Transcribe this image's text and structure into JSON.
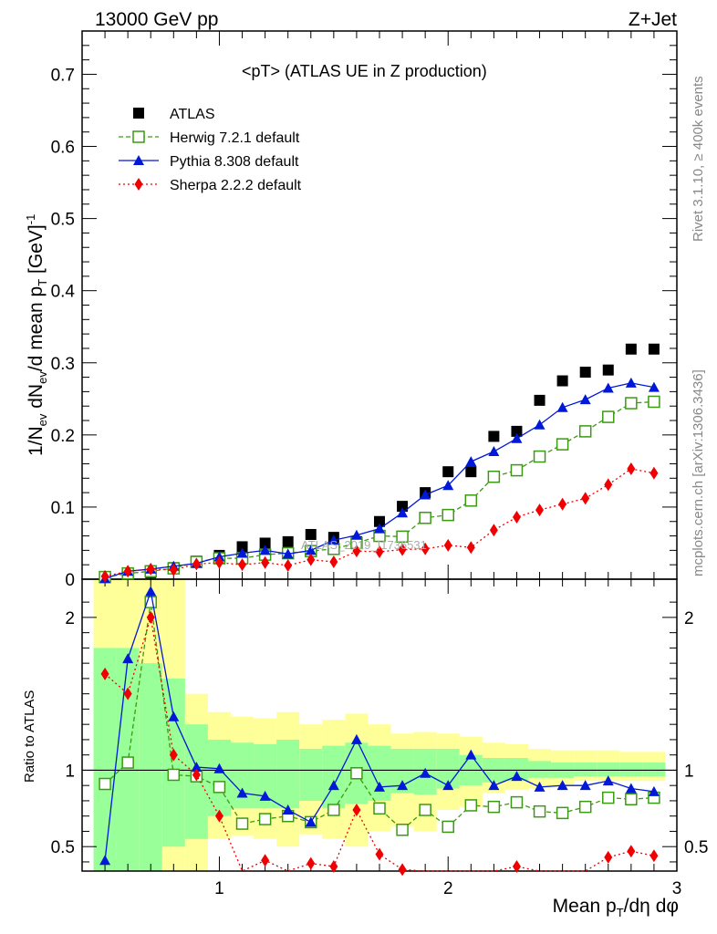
{
  "header": {
    "energy_label": "13000 GeV pp",
    "process_label": "Z+Jet"
  },
  "side_labels": {
    "rivet": "Rivet 3.1.10, ≥ 400k events",
    "mcplots": "mcplots.cern.ch [arXiv:1306.3436]"
  },
  "watermark": "ATLAS_2019_I1736531",
  "colors": {
    "atlas": "#000000",
    "herwig": "#3c9a12",
    "pythia": "#0018d8",
    "sherpa": "#f00000",
    "band_inner": "#99ff99",
    "band_outer": "#ffff99"
  },
  "chart_data": [
    {
      "type": "scatter",
      "title": "<pT> (ATLAS UE in Z production)",
      "ylabel": "1/N_ev dN_ev/d mean p_T [GeV]^-1",
      "ylim": [
        0,
        0.76
      ],
      "xlim": [
        0.4,
        3.0
      ],
      "yticks": [
        0,
        0.1,
        0.2,
        0.3,
        0.4,
        0.5,
        0.6,
        0.7
      ],
      "ytick_labels": [
        "0",
        "0.1",
        "0.2",
        "0.3",
        "0.4",
        "0.5",
        "0.6",
        "0.7"
      ],
      "legend_placement": "top-left",
      "x": [
        0.5,
        0.6,
        0.7,
        0.8,
        0.9,
        1.0,
        1.1,
        1.2,
        1.3,
        1.4,
        1.5,
        1.6,
        1.7,
        1.8,
        1.9,
        2.0,
        2.1,
        2.2,
        2.3,
        2.4,
        2.5,
        2.6,
        2.7,
        2.8,
        2.9
      ],
      "series": [
        {
          "name": "ATLAS",
          "marker": "square-filled",
          "values": [
            0.003,
            0.008,
            0.009,
            0.016,
            0.025,
            0.033,
            0.045,
            0.05,
            0.052,
            0.062,
            0.058,
            0.052,
            0.08,
            0.101,
            0.12,
            0.149,
            0.149,
            0.198,
            0.205,
            0.248,
            0.275,
            0.287,
            0.29,
            0.319,
            0.319
          ]
        },
        {
          "name": "Herwig 7.2.1 default",
          "marker": "square-open",
          "line": "dashed",
          "values": [
            0.003,
            0.008,
            0.011,
            0.015,
            0.024,
            0.029,
            0.029,
            0.034,
            0.036,
            0.039,
            0.042,
            0.05,
            0.06,
            0.059,
            0.085,
            0.089,
            0.109,
            0.142,
            0.151,
            0.17,
            0.187,
            0.205,
            0.225,
            0.244,
            0.246
          ]
        },
        {
          "name": "Pythia 8.308 default",
          "marker": "triangle-filled",
          "line": "solid",
          "values": [
            0.001,
            0.011,
            0.014,
            0.018,
            0.022,
            0.031,
            0.036,
            0.04,
            0.035,
            0.04,
            0.054,
            0.061,
            0.07,
            0.092,
            0.117,
            0.13,
            0.163,
            0.177,
            0.195,
            0.214,
            0.238,
            0.249,
            0.265,
            0.272,
            0.266
          ]
        },
        {
          "name": "Sherpa 2.2.2 default",
          "marker": "diamond-filled",
          "line": "dotted",
          "values": [
            0.004,
            0.011,
            0.014,
            0.013,
            0.021,
            0.023,
            0.02,
            0.023,
            0.019,
            0.027,
            0.024,
            0.039,
            0.038,
            0.041,
            0.042,
            0.047,
            0.044,
            0.068,
            0.086,
            0.096,
            0.104,
            0.112,
            0.131,
            0.153,
            0.147
          ]
        }
      ]
    },
    {
      "type": "line",
      "ylabel": "Ratio to ATLAS",
      "xlabel": "Mean p_T/dη dφ",
      "ylim": [
        0.34,
        2.25
      ],
      "xlim": [
        0.4,
        3.0
      ],
      "xticks": [
        1,
        2,
        3
      ],
      "xtick_labels": [
        "1",
        "2",
        "3"
      ],
      "yticks": [
        0.5,
        1,
        2
      ],
      "ytick_labels": [
        "0.5",
        "1",
        "2"
      ],
      "reference_line": 1,
      "x": [
        0.5,
        0.6,
        0.7,
        0.8,
        0.9,
        1.0,
        1.1,
        1.2,
        1.3,
        1.4,
        1.5,
        1.6,
        1.7,
        1.8,
        1.9,
        2.0,
        2.1,
        2.2,
        2.3,
        2.4,
        2.5,
        2.6,
        2.7,
        2.8,
        2.9
      ],
      "uncertainty_inner": [
        [
          0.2,
          1.8
        ],
        [
          0.2,
          1.8
        ],
        [
          0.3,
          1.7
        ],
        [
          0.5,
          1.6
        ],
        [
          0.55,
          1.3
        ],
        [
          0.7,
          1.2
        ],
        [
          0.75,
          1.18
        ],
        [
          0.75,
          1.17
        ],
        [
          0.75,
          1.2
        ],
        [
          0.8,
          1.14
        ],
        [
          0.75,
          1.16
        ],
        [
          0.78,
          1.18
        ],
        [
          0.8,
          1.16
        ],
        [
          0.85,
          1.14
        ],
        [
          0.84,
          1.14
        ],
        [
          0.88,
          1.14
        ],
        [
          0.9,
          1.1
        ],
        [
          0.92,
          1.08
        ],
        [
          0.93,
          1.08
        ],
        [
          0.95,
          1.06
        ],
        [
          0.95,
          1.05
        ],
        [
          0.96,
          1.05
        ],
        [
          0.96,
          1.05
        ],
        [
          0.96,
          1.05
        ],
        [
          0.96,
          1.05
        ]
      ],
      "uncertainty_outer": [
        [
          0.2,
          2.3
        ],
        [
          0.2,
          2.3
        ],
        [
          0.2,
          2.3
        ],
        [
          0.25,
          2.3
        ],
        [
          0.3,
          1.5
        ],
        [
          0.55,
          1.38
        ],
        [
          0.57,
          1.35
        ],
        [
          0.55,
          1.34
        ],
        [
          0.5,
          1.38
        ],
        [
          0.58,
          1.3
        ],
        [
          0.55,
          1.33
        ],
        [
          0.5,
          1.37
        ],
        [
          0.6,
          1.3
        ],
        [
          0.63,
          1.24
        ],
        [
          0.6,
          1.25
        ],
        [
          0.74,
          1.24
        ],
        [
          0.76,
          1.22
        ],
        [
          0.85,
          1.18
        ],
        [
          0.87,
          1.17
        ],
        [
          0.88,
          1.14
        ],
        [
          0.9,
          1.13
        ],
        [
          0.93,
          1.13
        ],
        [
          0.93,
          1.13
        ],
        [
          0.93,
          1.12
        ],
        [
          0.93,
          1.12
        ]
      ],
      "series": [
        {
          "name": "Herwig 7.2.1 default",
          "values": [
            0.91,
            1.05,
            2.1,
            0.97,
            0.96,
            0.89,
            0.65,
            0.68,
            0.7,
            0.66,
            0.74,
            0.98,
            0.75,
            0.61,
            0.74,
            0.63,
            0.77,
            0.76,
            0.79,
            0.73,
            0.72,
            0.76,
            0.82,
            0.81,
            0.82
          ]
        },
        {
          "name": "Pythia 8.308 default",
          "values": [
            0.41,
            1.73,
            2.17,
            1.35,
            1.02,
            1.01,
            0.85,
            0.83,
            0.74,
            0.66,
            0.9,
            1.2,
            0.89,
            0.9,
            0.98,
            0.9,
            1.1,
            0.9,
            0.96,
            0.89,
            0.9,
            0.9,
            0.93,
            0.88,
            0.86
          ]
        },
        {
          "name": "Sherpa 2.2.2 default",
          "values": [
            1.63,
            1.5,
            2.0,
            1.1,
            0.97,
            0.7,
            0.3,
            0.41,
            0.3,
            0.39,
            0.37,
            0.74,
            0.45,
            0.35,
            0.3,
            0.3,
            0.3,
            0.3,
            0.37,
            0.3,
            0.3,
            0.3,
            0.43,
            0.47,
            0.44
          ]
        }
      ]
    }
  ]
}
